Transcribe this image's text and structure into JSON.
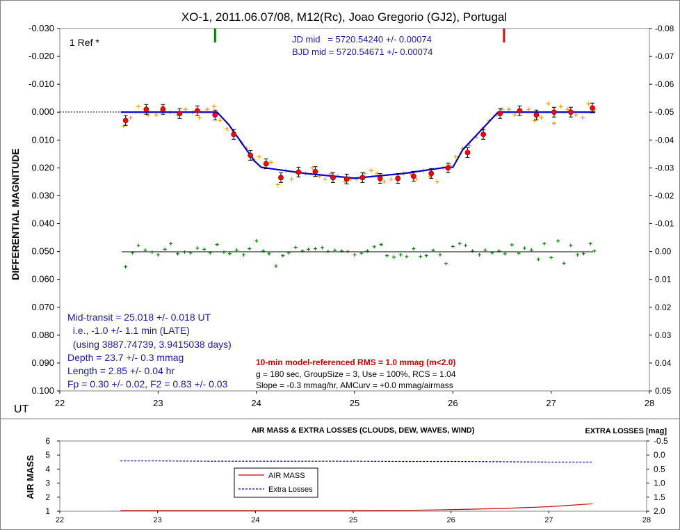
{
  "chart_data": [
    {
      "type": "scatter",
      "title": "XO-1, 2011.06.07/08, M12(Rc), Joao Gregorio (GJ2), Portugal",
      "xlabel": "UT",
      "ylabel": "DIFFERENTIAL MAGNITUDE",
      "xlim": [
        22,
        28
      ],
      "ylim": [
        -0.03,
        0.1
      ],
      "y2lim": [
        -0.08,
        0.05
      ],
      "y_inverted": true,
      "x_ticks": [
        "22",
        "23",
        "24",
        "25",
        "26",
        "27",
        "28"
      ],
      "y_ticks": [
        "-0.030",
        "-0.020",
        "-0.010",
        "0.000",
        "0.010",
        "0.020",
        "0.030",
        "0.040",
        "0.050",
        "0.060",
        "0.070",
        "0.080",
        "0.090",
        "0.100"
      ],
      "y2_ticks": [
        "-0.08",
        "-0.07",
        "-0.06",
        "-0.05",
        "-0.04",
        "-0.03",
        "-0.02",
        "-0.01",
        "0.00",
        "0.01",
        "0.02",
        "0.03",
        "0.04",
        "0.05"
      ],
      "ref_label": "1 Ref *",
      "jd_mid": "JD mid   = 5720.54240 +/- 0.00074",
      "bjd_mid": "BJD mid = 5720.54671 +/- 0.00074",
      "markers": [
        {
          "x": 23.58,
          "color": "#008000"
        },
        {
          "x": 26.52,
          "color": "#ff0000"
        }
      ],
      "annotations_left": [
        "Mid-transit = 25.018 +/- 0.018 UT",
        "  i.e., -1.0 +/- 1.1 min (LATE)",
        "  (using 3887.74739, 3.9415038 days)",
        "Depth = 23.7 +/- 0.3 mmag",
        "Length = 2.85 +/- 0.04 hr",
        "Fp = 0.30 +/- 0.02, F2 = 0.83 +/- 0.03"
      ],
      "rms_text": "10-min model-referenced RMS = 1.0 mmag (m<2.0)",
      "stats_lines": [
        "g = 180 sec, GroupSize = 3, Use = 100%, RCS = 1.04",
        "Slope = -0.3 mmag/hr, AMCurv = +0.0 mmag/airmass"
      ],
      "colors": {
        "model": "#0000cc",
        "binned": "#ff0000",
        "raw": "#ff9900",
        "residual": "#008000",
        "text_blue": "#1a1aa0",
        "rms": "#cc0000"
      },
      "model": [
        [
          22.62,
          0.0
        ],
        [
          23.6,
          0.0
        ],
        [
          23.72,
          0.0045
        ],
        [
          23.84,
          0.0105
        ],
        [
          23.98,
          0.0175
        ],
        [
          24.05,
          0.0198
        ],
        [
          24.5,
          0.022
        ],
        [
          25.0,
          0.0237
        ],
        [
          25.5,
          0.022
        ],
        [
          25.93,
          0.0198
        ],
        [
          26.0,
          0.0198
        ],
        [
          26.1,
          0.0135
        ],
        [
          26.3,
          0.006
        ],
        [
          26.46,
          0.0
        ],
        [
          27.45,
          0.0
        ]
      ],
      "binned": [
        {
          "x": 22.67,
          "y": 0.003
        },
        {
          "x": 22.88,
          "y": -0.001
        },
        {
          "x": 23.05,
          "y": -0.001
        },
        {
          "x": 23.22,
          "y": 0.0005
        },
        {
          "x": 23.4,
          "y": -0.0005
        },
        {
          "x": 23.58,
          "y": 0.001
        },
        {
          "x": 23.77,
          "y": 0.008
        },
        {
          "x": 23.94,
          "y": 0.0155
        },
        {
          "x": 24.1,
          "y": 0.0185
        },
        {
          "x": 24.25,
          "y": 0.0235
        },
        {
          "x": 24.43,
          "y": 0.0215
        },
        {
          "x": 24.6,
          "y": 0.0213
        },
        {
          "x": 24.78,
          "y": 0.0235
        },
        {
          "x": 24.92,
          "y": 0.024
        },
        {
          "x": 25.08,
          "y": 0.0235
        },
        {
          "x": 25.26,
          "y": 0.0238
        },
        {
          "x": 25.44,
          "y": 0.0238
        },
        {
          "x": 25.6,
          "y": 0.023
        },
        {
          "x": 25.78,
          "y": 0.022
        },
        {
          "x": 25.95,
          "y": 0.02
        },
        {
          "x": 26.15,
          "y": 0.0145
        },
        {
          "x": 26.31,
          "y": 0.008
        },
        {
          "x": 26.48,
          "y": 0.0005
        },
        {
          "x": 26.68,
          "y": -0.0005
        },
        {
          "x": 26.85,
          "y": 0.001
        },
        {
          "x": 27.03,
          "y": 0.0
        },
        {
          "x": 27.2,
          "y": 0.0
        },
        {
          "x": 27.42,
          "y": -0.0015
        }
      ],
      "raw_points": [
        [
          22.65,
          0.005
        ],
        [
          22.72,
          0.002
        ],
        [
          22.8,
          -0.002
        ],
        [
          22.9,
          0.001
        ],
        [
          22.98,
          0.001
        ],
        [
          23.05,
          -0.002
        ],
        [
          23.12,
          0.0
        ],
        [
          23.2,
          0.001
        ],
        [
          23.28,
          -0.001
        ],
        [
          23.35,
          0.0
        ],
        [
          23.42,
          0.002
        ],
        [
          23.5,
          -0.001
        ],
        [
          23.57,
          -0.002
        ],
        [
          23.63,
          0.003
        ],
        [
          23.7,
          0.006
        ],
        [
          23.77,
          0.007
        ],
        [
          23.85,
          0.011
        ],
        [
          23.9,
          0.013
        ],
        [
          23.97,
          0.017
        ],
        [
          24.03,
          0.016
        ],
        [
          24.08,
          0.02
        ],
        [
          24.15,
          0.018
        ],
        [
          24.22,
          0.026
        ],
        [
          24.3,
          0.021
        ],
        [
          24.36,
          0.024
        ],
        [
          24.42,
          0.022
        ],
        [
          24.5,
          0.022
        ],
        [
          24.57,
          0.02
        ],
        [
          24.64,
          0.023
        ],
        [
          24.7,
          0.024
        ],
        [
          24.76,
          0.022
        ],
        [
          24.83,
          0.023
        ],
        [
          24.9,
          0.025
        ],
        [
          24.96,
          0.024
        ],
        [
          25.02,
          0.024
        ],
        [
          25.1,
          0.022
        ],
        [
          25.17,
          0.021
        ],
        [
          25.23,
          0.022
        ],
        [
          25.3,
          0.025
        ],
        [
          25.37,
          0.024
        ],
        [
          25.44,
          0.023
        ],
        [
          25.5,
          0.022
        ],
        [
          25.57,
          0.022
        ],
        [
          25.63,
          0.024
        ],
        [
          25.7,
          0.021
        ],
        [
          25.77,
          0.023
        ],
        [
          25.84,
          0.025
        ],
        [
          25.9,
          0.02
        ],
        [
          25.97,
          0.019
        ],
        [
          26.03,
          0.016
        ],
        [
          26.1,
          0.013
        ],
        [
          26.17,
          0.012
        ],
        [
          26.24,
          0.009
        ],
        [
          26.3,
          0.006
        ],
        [
          26.37,
          0.003
        ],
        [
          26.44,
          0.001
        ],
        [
          26.5,
          -0.001
        ],
        [
          26.57,
          -0.001
        ],
        [
          26.63,
          0.001
        ],
        [
          26.7,
          0.0
        ],
        [
          26.77,
          -0.001
        ],
        [
          26.83,
          0.003
        ],
        [
          26.9,
          0.002
        ],
        [
          26.97,
          -0.003
        ],
        [
          27.03,
          0.004
        ],
        [
          27.1,
          -0.002
        ],
        [
          27.17,
          -0.001
        ],
        [
          27.25,
          0.001
        ],
        [
          27.32,
          0.002
        ],
        [
          27.38,
          -0.003
        ],
        [
          27.44,
          -0.001
        ]
      ],
      "residual_baseline": 0.05,
      "residuals": [
        [
          22.67,
          0.0555
        ],
        [
          22.74,
          0.0505
        ],
        [
          22.8,
          0.0478
        ],
        [
          22.87,
          0.0495
        ],
        [
          22.94,
          0.0502
        ],
        [
          23.0,
          0.0512
        ],
        [
          23.07,
          0.0492
        ],
        [
          23.13,
          0.0472
        ],
        [
          23.2,
          0.0508
        ],
        [
          23.27,
          0.0502
        ],
        [
          23.33,
          0.0505
        ],
        [
          23.4,
          0.0488
        ],
        [
          23.47,
          0.0492
        ],
        [
          23.53,
          0.0505
        ],
        [
          23.6,
          0.0475
        ],
        [
          23.67,
          0.0502
        ],
        [
          23.73,
          0.0508
        ],
        [
          23.8,
          0.0495
        ],
        [
          23.87,
          0.0512
        ],
        [
          23.93,
          0.049
        ],
        [
          24.0,
          0.0462
        ],
        [
          24.07,
          0.0498
        ],
        [
          24.13,
          0.0508
        ],
        [
          24.2,
          0.0552
        ],
        [
          24.27,
          0.0515
        ],
        [
          24.33,
          0.0505
        ],
        [
          24.4,
          0.0485
        ],
        [
          24.47,
          0.0498
        ],
        [
          24.53,
          0.0492
        ],
        [
          24.6,
          0.049
        ],
        [
          24.67,
          0.0486
        ],
        [
          24.73,
          0.05
        ],
        [
          24.8,
          0.0496
        ],
        [
          24.87,
          0.0498
        ],
        [
          24.93,
          0.05
        ],
        [
          25.0,
          0.0512
        ],
        [
          25.07,
          0.0506
        ],
        [
          25.13,
          0.0498
        ],
        [
          25.2,
          0.0483
        ],
        [
          25.27,
          0.0475
        ],
        [
          25.33,
          0.0515
        ],
        [
          25.4,
          0.052
        ],
        [
          25.47,
          0.0512
        ],
        [
          25.53,
          0.0518
        ],
        [
          25.6,
          0.049
        ],
        [
          25.67,
          0.0518
        ],
        [
          25.73,
          0.0515
        ],
        [
          25.8,
          0.0496
        ],
        [
          25.87,
          0.0512
        ],
        [
          25.93,
          0.0543
        ],
        [
          26.0,
          0.0482
        ],
        [
          26.07,
          0.0472
        ],
        [
          26.13,
          0.0478
        ],
        [
          26.2,
          0.0498
        ],
        [
          26.27,
          0.0512
        ],
        [
          26.33,
          0.0495
        ],
        [
          26.4,
          0.0505
        ],
        [
          26.47,
          0.0498
        ],
        [
          26.53,
          0.0508
        ],
        [
          26.6,
          0.0476
        ],
        [
          26.67,
          0.0506
        ],
        [
          26.73,
          0.0488
        ],
        [
          26.8,
          0.0495
        ],
        [
          26.87,
          0.0528
        ],
        [
          26.93,
          0.0472
        ],
        [
          27.0,
          0.0522
        ],
        [
          27.07,
          0.0462
        ],
        [
          27.13,
          0.0542
        ],
        [
          27.2,
          0.0478
        ],
        [
          27.27,
          0.0512
        ],
        [
          27.33,
          0.0508
        ],
        [
          27.4,
          0.0472
        ],
        [
          27.44,
          0.0498
        ]
      ]
    },
    {
      "type": "line",
      "title": "AIR MASS & EXTRA LOSSES (CLOUDS, DEW, WAVES, WIND)",
      "ylabel": "AIR MASS",
      "y2label": "EXTRA LOSSES [mag]",
      "xlim": [
        22,
        28
      ],
      "ylim": [
        1,
        6
      ],
      "y2lim": [
        -0.5,
        2.0
      ],
      "y2_inverted": true,
      "x_ticks": [
        "22",
        "23",
        "24",
        "25",
        "26",
        "27",
        "28"
      ],
      "y_ticks": [
        "1",
        "2",
        "3",
        "4",
        "5",
        "6"
      ],
      "y2_ticks": [
        "-0.5",
        "0.0",
        "0.5",
        "1.0",
        "1.5",
        "2.0"
      ],
      "legend": [
        "AIR MASS",
        "Extra Losses"
      ],
      "series": [
        {
          "name": "AIR MASS",
          "color": "#cc0000",
          "style": "solid",
          "x": [
            22.62,
            23.0,
            23.5,
            24.0,
            24.5,
            25.0,
            25.5,
            26.0,
            26.5,
            27.0,
            27.45
          ],
          "values": [
            1.02,
            1.01,
            1.0,
            1.0,
            1.01,
            1.03,
            1.06,
            1.11,
            1.19,
            1.32,
            1.53
          ]
        },
        {
          "name": "Extra Losses",
          "color": "#0000aa",
          "style": "dashed",
          "x": [
            22.62,
            23.0,
            23.5,
            24.0,
            24.5,
            25.0,
            25.5,
            26.0,
            26.5,
            27.0,
            27.45
          ],
          "values": [
            0.21,
            0.21,
            0.22,
            0.22,
            0.22,
            0.22,
            0.23,
            0.23,
            0.24,
            0.25,
            0.25
          ]
        }
      ]
    }
  ]
}
